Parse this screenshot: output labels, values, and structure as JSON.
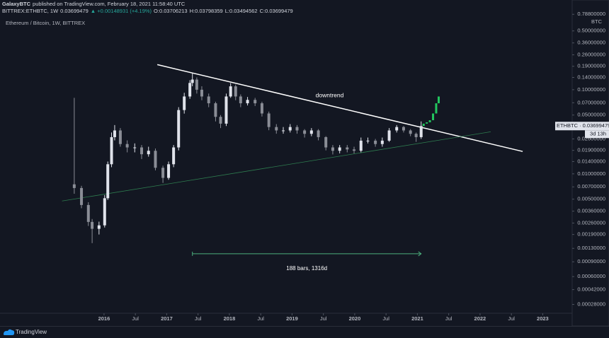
{
  "header": {
    "publisher": "GalaxyBTC",
    "published": "published on TradingView.com, February 18, 2021 11:58:40 UTC",
    "symbol": "BITTREX:ETHBTC, 1W",
    "price": "0.03699479",
    "change": "▲ +0.00148931 (+4.19%)",
    "open": "O:0.03706213",
    "high": "H:0.03798359",
    "low": "L:0.03494562",
    "close": "C:0.03699479"
  },
  "footer": {
    "brand": "TradingView"
  },
  "chart_data": {
    "type": "candlestick",
    "title": "Ethereum / Bitcoin, 1W, BITTREX",
    "currency": "BTC",
    "log_scale": true,
    "xlim": [
      2014.34,
      2023.47
    ],
    "ylim": [
      0.00022,
      1.166
    ],
    "xticks": [
      2016,
      {
        "value": 2016.5,
        "label": "Jul"
      },
      2017,
      {
        "value": 2017.5,
        "label": "Jul"
      },
      2018,
      {
        "value": 2018.5,
        "label": "Jul"
      },
      2019,
      {
        "value": 2019.5,
        "label": "Jul"
      },
      2020,
      {
        "value": 2020.5,
        "label": "Jul"
      },
      2021,
      {
        "value": 2021.5,
        "label": "Jul"
      },
      2022,
      {
        "value": 2022.5,
        "label": "Jul"
      },
      2023
    ],
    "yticks": [
      {
        "value": 0.788,
        "label": "0.78800000"
      },
      {
        "value": 0.5,
        "label": "0.50000000"
      },
      {
        "value": 0.36,
        "label": "0.36000000"
      },
      {
        "value": 0.26,
        "label": "0.26000000"
      },
      {
        "value": 0.19,
        "label": "0.19000000"
      },
      {
        "value": 0.14,
        "label": "0.14000000"
      },
      {
        "value": 0.1,
        "label": "0.10000000"
      },
      {
        "value": 0.07,
        "label": "0.07000000"
      },
      {
        "value": 0.05,
        "label": "0.05000000"
      },
      {
        "value": 0.026,
        "label": "0.02600000"
      },
      {
        "value": 0.019,
        "label": "0.01900000"
      },
      {
        "value": 0.014,
        "label": "0.01400000"
      },
      {
        "value": 0.01,
        "label": "0.01000000"
      },
      {
        "value": 0.007,
        "label": "0.00700000"
      },
      {
        "value": 0.005,
        "label": "0.00500000"
      },
      {
        "value": 0.0036,
        "label": "0.00360000"
      },
      {
        "value": 0.0026,
        "label": "0.00260000"
      },
      {
        "value": 0.0019,
        "label": "0.00190000"
      },
      {
        "value": 0.0013,
        "label": "0.00130000"
      },
      {
        "value": 0.0009,
        "label": "0.00090000"
      },
      {
        "value": 0.0006,
        "label": "0.00060000"
      },
      {
        "value": 0.00042,
        "label": "0.00042000"
      },
      {
        "value": 0.00028,
        "label": "0.00028000"
      }
    ],
    "up_color": "#e0e3eb",
    "down_color": "#8a8d96",
    "x": [
      2015.525,
      2015.64,
      2015.75,
      2015.81,
      2015.92,
      2016.01,
      2016.06,
      2016.12,
      2016.17,
      2016.26,
      2016.37,
      2016.49,
      2016.6,
      2016.71,
      2016.82,
      2016.94,
      2017.03,
      2017.11,
      2017.19,
      2017.28,
      2017.37,
      2017.41,
      2017.48,
      2017.56,
      2017.67,
      2017.78,
      2017.86,
      2017.95,
      2018.02,
      2018.1,
      2018.18,
      2018.29,
      2018.41,
      2018.52,
      2018.63,
      2018.75,
      2018.86,
      2018.97,
      2019.08,
      2019.2,
      2019.31,
      2019.42,
      2019.54,
      2019.65,
      2019.76,
      2019.88,
      2019.99,
      2020.1,
      2020.21,
      2020.33,
      2020.44,
      2020.55,
      2020.67,
      2020.78,
      2020.89,
      2020.98,
      2021.06
    ],
    "open": [
      0.0075,
      0.00678,
      0.00426,
      0.00268,
      0.00222,
      0.00244,
      0.00513,
      0.013,
      0.0273,
      0.0328,
      0.0226,
      0.0206,
      0.0206,
      0.0171,
      0.0188,
      0.0118,
      0.00895,
      0.013,
      0.0206,
      0.0573,
      0.0831,
      0.1204,
      0.132,
      0.1,
      0.0831,
      0.069,
      0.0476,
      0.0395,
      0.0831,
      0.1097,
      0.0831,
      0.069,
      0.0757,
      0.069,
      0.0522,
      0.036,
      0.0328,
      0.0328,
      0.036,
      0.0328,
      0.0299,
      0.0328,
      0.0273,
      0.0206,
      0.0188,
      0.0206,
      0.0195,
      0.0188,
      0.0248,
      0.0248,
      0.0226,
      0.0248,
      0.0328,
      0.036,
      0.0328,
      0.0299,
      0.0273
    ],
    "close": [
      0.00678,
      0.00426,
      0.00268,
      0.00222,
      0.00244,
      0.00513,
      0.013,
      0.0273,
      0.0328,
      0.0226,
      0.0206,
      0.0206,
      0.0171,
      0.0188,
      0.0118,
      0.00895,
      0.013,
      0.0206,
      0.0573,
      0.0831,
      0.1204,
      0.132,
      0.1,
      0.0831,
      0.069,
      0.0476,
      0.0395,
      0.0831,
      0.1097,
      0.0831,
      0.069,
      0.0757,
      0.069,
      0.0522,
      0.036,
      0.0328,
      0.0328,
      0.036,
      0.0328,
      0.0299,
      0.0328,
      0.0273,
      0.0206,
      0.0188,
      0.0206,
      0.0195,
      0.0188,
      0.0248,
      0.0248,
      0.0226,
      0.0248,
      0.0328,
      0.036,
      0.0328,
      0.0299,
      0.0273,
      0.03699479
    ],
    "high": [
      0.08,
      0.0072,
      0.0046,
      0.0029,
      0.0027,
      0.0056,
      0.014,
      0.031,
      0.038,
      0.035,
      0.025,
      0.023,
      0.022,
      0.021,
      0.02,
      0.0125,
      0.014,
      0.022,
      0.062,
      0.092,
      0.13,
      0.156,
      0.14,
      0.11,
      0.09,
      0.072,
      0.05,
      0.09,
      0.12,
      0.115,
      0.088,
      0.082,
      0.08,
      0.072,
      0.055,
      0.039,
      0.036,
      0.039,
      0.038,
      0.034,
      0.035,
      0.034,
      0.028,
      0.022,
      0.022,
      0.022,
      0.021,
      0.027,
      0.027,
      0.026,
      0.027,
      0.035,
      0.038,
      0.037,
      0.034,
      0.031,
      0.042
    ],
    "low": [
      0.0058,
      0.0039,
      0.0024,
      0.0015,
      0.0019,
      0.0023,
      0.0049,
      0.012,
      0.025,
      0.021,
      0.018,
      0.018,
      0.015,
      0.016,
      0.011,
      0.0078,
      0.0085,
      0.012,
      0.019,
      0.052,
      0.078,
      0.11,
      0.09,
      0.075,
      0.062,
      0.042,
      0.035,
      0.037,
      0.08,
      0.075,
      0.062,
      0.065,
      0.064,
      0.048,
      0.033,
      0.03,
      0.03,
      0.031,
      0.03,
      0.027,
      0.028,
      0.025,
      0.019,
      0.017,
      0.0175,
      0.018,
      0.0175,
      0.018,
      0.023,
      0.021,
      0.021,
      0.024,
      0.031,
      0.031,
      0.028,
      0.024,
      0.026
    ],
    "projection": {
      "color": "#22c55e",
      "x": [
        2021.1,
        2021.15,
        2021.2,
        2021.25,
        2021.3,
        2021.34
      ],
      "open": [
        0.037,
        0.0395,
        0.041,
        0.0434,
        0.0522,
        0.069
      ],
      "close": [
        0.0395,
        0.041,
        0.0434,
        0.0522,
        0.069,
        0.0831
      ]
    },
    "trendlines": [
      {
        "color": "#ffffff",
        "x": [
          2016.85,
          2022.68
        ],
        "y": [
          0.1988,
          0.01845
        ]
      },
      {
        "color": "#2e7d4f",
        "x": [
          2015.33,
          2022.17
        ],
        "y": [
          0.00475,
          0.0316
        ]
      }
    ],
    "annotations": [
      {
        "text": "downtrend",
        "x": 2019.6,
        "y": 0.085
      }
    ],
    "measure": {
      "color": "#4caf7d",
      "x": [
        2017.41,
        2021.06
      ],
      "y": 0.00112,
      "label": "188 bars, 1316d",
      "label_y": 0.00075
    },
    "last_price": {
      "label": "ETHBTC · 0.03699479",
      "value": 0.03699479,
      "countdown": "3d 13h"
    }
  }
}
